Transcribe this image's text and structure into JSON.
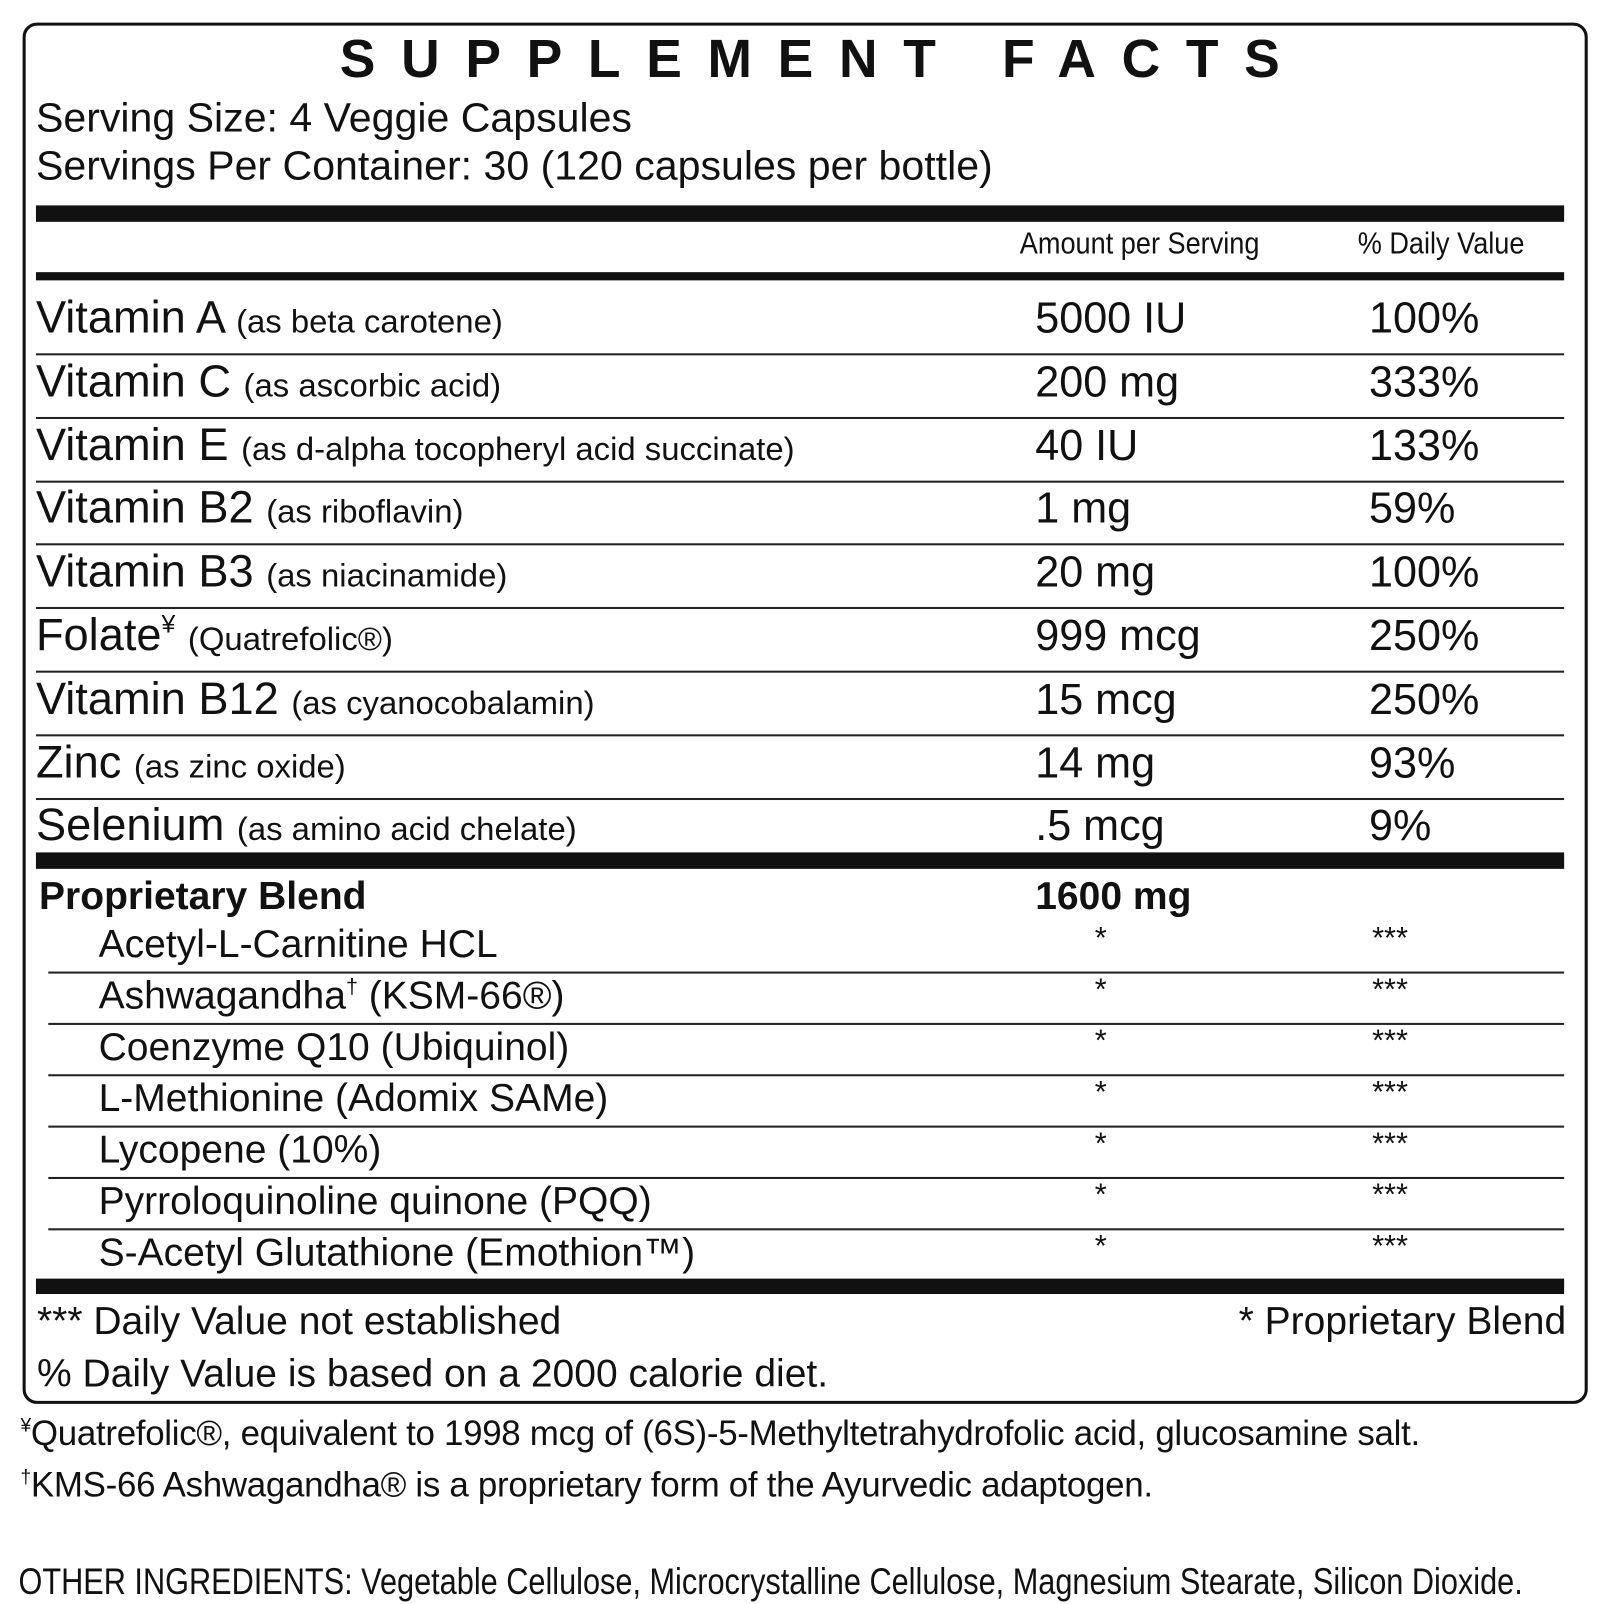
{
  "title": "SUPPLEMENT FACTS",
  "serving_size": "Serving Size: 4 Veggie Capsules",
  "servings_per_container": "Servings Per Container: 30 (120 capsules per bottle)",
  "columns": {
    "amount": "Amount per Serving",
    "daily_value": "% Daily Value"
  },
  "nutrients": [
    {
      "name": "Vitamin A",
      "detail": "(as beta carotene)",
      "amount": "5000 IU",
      "daily_value": "100%"
    },
    {
      "name": "Vitamin C",
      "detail": "(as ascorbic acid)",
      "amount": "200 mg",
      "daily_value": "333%"
    },
    {
      "name": "Vitamin E",
      "detail": "(as d-alpha tocopheryl acid succinate)",
      "amount": "40 IU",
      "daily_value": "133%"
    },
    {
      "name": "Vitamin B2",
      "detail": "(as riboflavin)",
      "amount": "1 mg",
      "daily_value": "59%"
    },
    {
      "name": "Vitamin B3",
      "detail": "(as niacinamide)",
      "amount": "20 mg",
      "daily_value": "100%"
    },
    {
      "name": "Folate",
      "sup": "¥",
      "detail": "(Quatrefolic®)",
      "amount": "999 mcg",
      "daily_value": "250%"
    },
    {
      "name": "Vitamin B12",
      "detail": "(as cyanocobalamin)",
      "amount": "15 mcg",
      "daily_value": "250%"
    },
    {
      "name": "Zinc",
      "detail": "(as zinc oxide)",
      "amount": "14 mg",
      "daily_value": "93%"
    },
    {
      "name": "Selenium",
      "detail": "(as amino acid chelate)",
      "amount": ".5 mcg",
      "daily_value": "9%"
    }
  ],
  "proprietary_blend": {
    "name": "Proprietary Blend",
    "amount": "1600 mg",
    "ingredients": [
      {
        "name": "Acetyl-L-Carnitine HCL",
        "amount": "*",
        "daily_value": "***"
      },
      {
        "name": "Ashwagandha",
        "sup": "†",
        "detail": "(KSM-66®)",
        "amount": "*",
        "daily_value": "***"
      },
      {
        "name": "Coenzyme Q10 (Ubiquinol)",
        "amount": "*",
        "daily_value": "***"
      },
      {
        "name": "L-Methionine (Adomix SAMe)",
        "amount": "*",
        "daily_value": "***"
      },
      {
        "name": "Lycopene (10%)",
        "amount": "*",
        "daily_value": "***"
      },
      {
        "name": "Pyrroloquinoline quinone (PQQ)",
        "amount": "*",
        "daily_value": "***"
      },
      {
        "name": "S-Acetyl Glutathione (Emothion™)",
        "amount": "*",
        "daily_value": "***"
      }
    ]
  },
  "footer": {
    "left": "*** Daily Value not established",
    "right": "* Proprietary Blend",
    "note": "% Daily Value is based on a 2000 calorie diet."
  },
  "footnotes": [
    {
      "mark": "¥",
      "text": "Quatrefolic®, equivalent to 1998 mcg of (6S)-5-Methyltetrahydrofolic acid, glucosamine salt."
    },
    {
      "mark": "†",
      "text": "KMS-66 Ashwagandha® is a proprietary form of the Ayurvedic adaptogen."
    }
  ],
  "other_ingredients": "OTHER INGREDIENTS: Vegetable Cellulose, Microcrystalline Cellulose, Magnesium Stearate, Silicon Dioxide."
}
